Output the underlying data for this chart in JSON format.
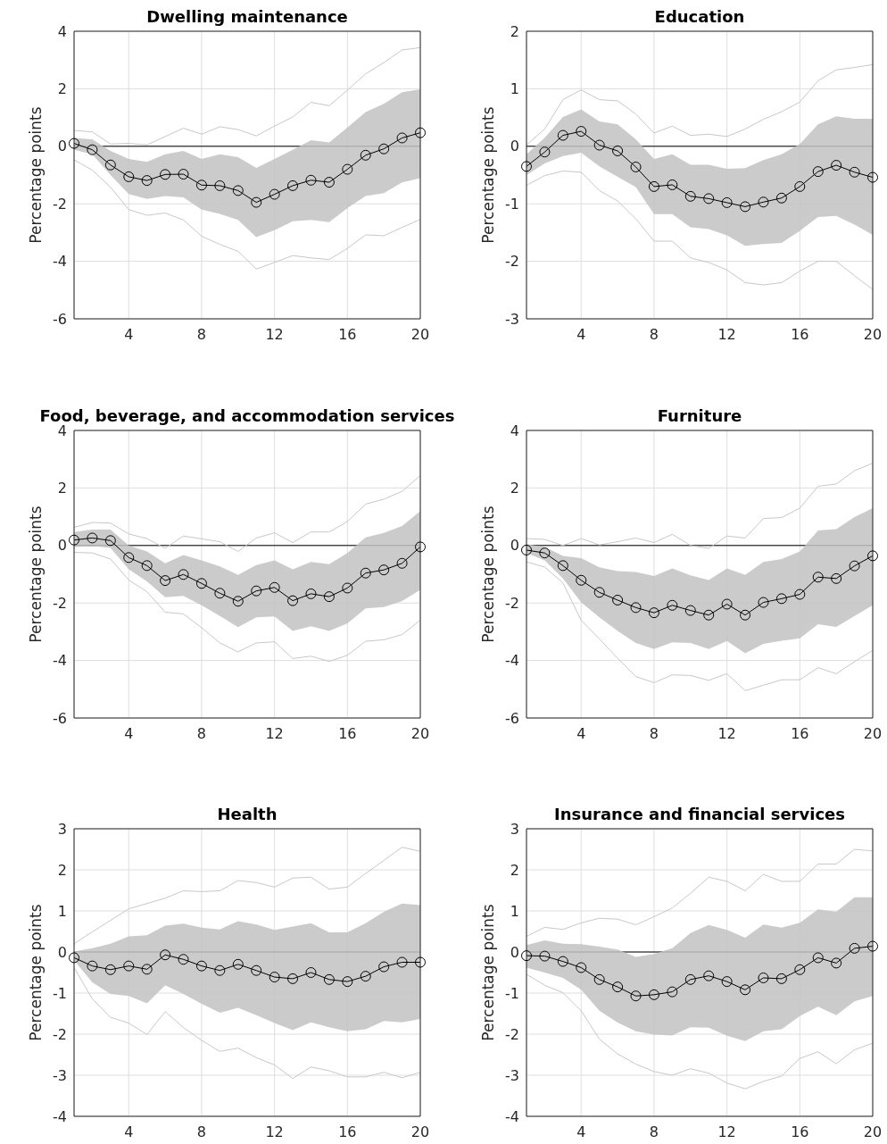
{
  "chart_data": [
    {
      "type": "line",
      "title": "Dwelling maintenance",
      "ylabel": "Percentage points",
      "x": [
        1,
        2,
        3,
        4,
        5,
        6,
        7,
        8,
        9,
        10,
        11,
        12,
        13,
        14,
        15,
        16,
        17,
        18,
        19,
        20
      ],
      "xlim": [
        1,
        20
      ],
      "xticks": [
        4,
        8,
        12,
        16,
        20
      ],
      "ylim": [
        -6,
        4
      ],
      "yticks": [
        -6,
        -4,
        -2,
        0,
        2,
        4
      ],
      "grid": true,
      "marker": "circle",
      "ref_lines": [
        {
          "axis": "y",
          "value": 0,
          "color": "#000000"
        }
      ],
      "series": [
        {
          "color": "#c8c8c8",
          "marker": "none",
          "values": [
            0.55,
            0.5,
            0.08,
            0.1,
            0.05,
            0.34,
            0.63,
            0.42,
            0.68,
            0.58,
            0.36,
            0.7,
            1.02,
            1.53,
            1.41,
            1.95,
            2.52,
            2.91,
            3.35,
            3.43
          ]
        },
        {
          "color": "#c8c8c8",
          "marker": "none",
          "values": [
            -0.47,
            -0.83,
            -1.42,
            -2.2,
            -2.4,
            -2.32,
            -2.56,
            -3.13,
            -3.41,
            -3.65,
            -4.27,
            -4.04,
            -3.8,
            -3.88,
            -3.94,
            -3.55,
            -3.08,
            -3.11,
            -2.82,
            -2.54
          ]
        },
        {
          "color": "#000000",
          "values": [
            0.1,
            -0.12,
            -0.65,
            -1.06,
            -1.19,
            -0.98,
            -0.97,
            -1.35,
            -1.37,
            -1.54,
            -1.95,
            -1.67,
            -1.37,
            -1.18,
            -1.25,
            -0.8,
            -0.31,
            -0.09,
            0.29,
            0.47
          ],
          "lower": [
            -0.12,
            -0.28,
            -1.0,
            -1.66,
            -1.83,
            -1.73,
            -1.78,
            -2.2,
            -2.35,
            -2.56,
            -3.16,
            -2.92,
            -2.61,
            -2.56,
            -2.64,
            -2.15,
            -1.73,
            -1.63,
            -1.26,
            -1.11
          ],
          "upper": [
            0.29,
            0.24,
            -0.16,
            -0.44,
            -0.54,
            -0.28,
            -0.16,
            -0.44,
            -0.28,
            -0.38,
            -0.75,
            -0.44,
            -0.12,
            0.21,
            0.13,
            0.65,
            1.19,
            1.48,
            1.88,
            1.98
          ]
        }
      ]
    },
    {
      "type": "line",
      "title": "Education",
      "ylabel": "Percentage points",
      "x": [
        1,
        2,
        3,
        4,
        5,
        6,
        7,
        8,
        9,
        10,
        11,
        12,
        13,
        14,
        15,
        16,
        17,
        18,
        19,
        20
      ],
      "xlim": [
        1,
        20
      ],
      "xticks": [
        4,
        8,
        12,
        16,
        20
      ],
      "ylim": [
        -3,
        2
      ],
      "yticks": [
        -3,
        -2,
        -1,
        0,
        1,
        2
      ],
      "grid": true,
      "marker": "circle",
      "ref_lines": [
        {
          "axis": "y",
          "value": 0,
          "color": "#000000"
        }
      ],
      "series": [
        {
          "color": "#c8c8c8",
          "marker": "none",
          "values": [
            0.02,
            0.3,
            0.81,
            0.98,
            0.81,
            0.79,
            0.56,
            0.23,
            0.35,
            0.19,
            0.21,
            0.17,
            0.3,
            0.47,
            0.6,
            0.77,
            1.14,
            1.33,
            1.37,
            1.42
          ]
        },
        {
          "color": "#c8c8c8",
          "marker": "none",
          "values": [
            -0.68,
            -0.51,
            -0.43,
            -0.45,
            -0.77,
            -0.95,
            -1.26,
            -1.65,
            -1.65,
            -1.94,
            -2.02,
            -2.15,
            -2.37,
            -2.41,
            -2.37,
            -2.17,
            -2.0,
            -2.0,
            -2.25,
            -2.49
          ]
        },
        {
          "color": "#000000",
          "values": [
            -0.35,
            -0.1,
            0.19,
            0.26,
            0.02,
            -0.08,
            -0.36,
            -0.7,
            -0.67,
            -0.87,
            -0.91,
            -0.98,
            -1.05,
            -0.97,
            -0.9,
            -0.7,
            -0.44,
            -0.33,
            -0.45,
            -0.54
          ],
          "lower": [
            -0.5,
            -0.3,
            -0.17,
            -0.11,
            -0.35,
            -0.53,
            -0.71,
            -1.18,
            -1.18,
            -1.41,
            -1.44,
            -1.55,
            -1.73,
            -1.7,
            -1.68,
            -1.47,
            -1.23,
            -1.21,
            -1.36,
            -1.54
          ],
          "upper": [
            -0.14,
            0.15,
            0.51,
            0.64,
            0.43,
            0.38,
            0.12,
            -0.22,
            -0.14,
            -0.32,
            -0.32,
            -0.39,
            -0.38,
            -0.24,
            -0.14,
            0.04,
            0.38,
            0.52,
            0.48,
            0.48
          ]
        }
      ]
    },
    {
      "type": "line",
      "title": "Food, beverage, and accommodation services",
      "ylabel": "Percentage points",
      "x": [
        1,
        2,
        3,
        4,
        5,
        6,
        7,
        8,
        9,
        10,
        11,
        12,
        13,
        14,
        15,
        16,
        17,
        18,
        19,
        20
      ],
      "xlim": [
        1,
        20
      ],
      "xticks": [
        4,
        8,
        12,
        16,
        20
      ],
      "ylim": [
        -6,
        4
      ],
      "yticks": [
        -6,
        -4,
        -2,
        0,
        2,
        4
      ],
      "grid": true,
      "marker": "circle",
      "ref_lines": [
        {
          "axis": "y",
          "value": 0,
          "color": "#000000"
        }
      ],
      "series": [
        {
          "color": "#c8c8c8",
          "marker": "none",
          "values": [
            0.63,
            0.8,
            0.78,
            0.4,
            0.24,
            -0.1,
            0.33,
            0.23,
            0.13,
            -0.21,
            0.26,
            0.44,
            0.1,
            0.47,
            0.47,
            0.83,
            1.44,
            1.61,
            1.88,
            2.43
          ]
        },
        {
          "color": "#c8c8c8",
          "marker": "none",
          "values": [
            -0.24,
            -0.26,
            -0.47,
            -1.2,
            -1.61,
            -2.32,
            -2.38,
            -2.86,
            -3.39,
            -3.7,
            -3.39,
            -3.35,
            -3.93,
            -3.85,
            -4.03,
            -3.82,
            -3.33,
            -3.28,
            -3.1,
            -2.6
          ]
        },
        {
          "color": "#000000",
          "values": [
            0.19,
            0.26,
            0.17,
            -0.42,
            -0.7,
            -1.22,
            -1.01,
            -1.32,
            -1.66,
            -1.94,
            -1.58,
            -1.46,
            -1.92,
            -1.68,
            -1.78,
            -1.48,
            -0.96,
            -0.85,
            -0.62,
            -0.05
          ],
          "lower": [
            -0.05,
            -0.02,
            -0.08,
            -0.83,
            -1.25,
            -1.8,
            -1.75,
            -2.08,
            -2.45,
            -2.84,
            -2.5,
            -2.47,
            -2.97,
            -2.81,
            -2.97,
            -2.71,
            -2.19,
            -2.14,
            -1.93,
            -1.54
          ],
          "upper": [
            0.47,
            0.55,
            0.55,
            0.0,
            -0.21,
            -0.62,
            -0.33,
            -0.52,
            -0.73,
            -1.02,
            -0.68,
            -0.52,
            -0.83,
            -0.57,
            -0.65,
            -0.26,
            0.28,
            0.44,
            0.68,
            1.2
          ]
        }
      ]
    },
    {
      "type": "line",
      "title": "Furniture",
      "ylabel": "Percentage points",
      "x": [
        1,
        2,
        3,
        4,
        5,
        6,
        7,
        8,
        9,
        10,
        11,
        12,
        13,
        14,
        15,
        16,
        17,
        18,
        19,
        20
      ],
      "xlim": [
        1,
        20
      ],
      "xticks": [
        4,
        8,
        12,
        16,
        20
      ],
      "ylim": [
        -6,
        4
      ],
      "yticks": [
        -6,
        -4,
        -2,
        0,
        2,
        4
      ],
      "grid": true,
      "marker": "circle",
      "ref_lines": [
        {
          "axis": "y",
          "value": 0,
          "color": "#000000"
        }
      ],
      "series": [
        {
          "color": "#c8c8c8",
          "marker": "none",
          "values": [
            0.24,
            0.21,
            0.0,
            0.24,
            0.02,
            0.13,
            0.26,
            0.1,
            0.39,
            0.0,
            -0.1,
            0.33,
            0.26,
            0.94,
            0.97,
            1.3,
            2.06,
            2.14,
            2.6,
            2.86
          ]
        },
        {
          "color": "#c8c8c8",
          "marker": "none",
          "values": [
            -0.57,
            -0.75,
            -1.3,
            -2.6,
            -3.25,
            -3.92,
            -4.56,
            -4.77,
            -4.5,
            -4.52,
            -4.69,
            -4.46,
            -5.05,
            -4.86,
            -4.67,
            -4.67,
            -4.25,
            -4.46,
            -4.04,
            -3.65
          ]
        },
        {
          "color": "#000000",
          "values": [
            -0.16,
            -0.26,
            -0.7,
            -1.21,
            -1.63,
            -1.9,
            -2.16,
            -2.34,
            -2.08,
            -2.26,
            -2.42,
            -2.04,
            -2.42,
            -1.98,
            -1.85,
            -1.7,
            -1.1,
            -1.15,
            -0.71,
            -0.36
          ],
          "lower": [
            -0.26,
            -0.52,
            -1.15,
            -1.98,
            -2.5,
            -2.97,
            -3.39,
            -3.6,
            -3.37,
            -3.39,
            -3.6,
            -3.32,
            -3.75,
            -3.42,
            -3.31,
            -3.23,
            -2.74,
            -2.83,
            -2.45,
            -2.08
          ],
          "upper": [
            0.05,
            -0.05,
            -0.36,
            -0.44,
            -0.76,
            -0.89,
            -0.92,
            -1.06,
            -0.8,
            -1.04,
            -1.2,
            -0.8,
            -1.02,
            -0.57,
            -0.47,
            -0.21,
            0.52,
            0.57,
            0.99,
            1.3
          ]
        }
      ]
    },
    {
      "type": "line",
      "title": "Health",
      "ylabel": "Percentage points",
      "x": [
        1,
        2,
        3,
        4,
        5,
        6,
        7,
        8,
        9,
        10,
        11,
        12,
        13,
        14,
        15,
        16,
        17,
        18,
        19,
        20
      ],
      "xlim": [
        1,
        20
      ],
      "xticks": [
        4,
        8,
        12,
        16,
        20
      ],
      "ylim": [
        -4,
        3
      ],
      "yticks": [
        -4,
        -3,
        -2,
        -1,
        0,
        1,
        2,
        3
      ],
      "grid": true,
      "marker": "circle",
      "ref_lines": [
        {
          "axis": "y",
          "value": 0,
          "color": "#000000"
        }
      ],
      "series": [
        {
          "color": "#c8c8c8",
          "marker": "none",
          "values": [
            0.2,
            0.49,
            0.77,
            1.05,
            1.18,
            1.31,
            1.49,
            1.47,
            1.49,
            1.74,
            1.69,
            1.58,
            1.8,
            1.82,
            1.53,
            1.58,
            1.91,
            2.23,
            2.55,
            2.45
          ]
        },
        {
          "color": "#c8c8c8",
          "marker": "none",
          "values": [
            -0.38,
            -1.14,
            -1.59,
            -1.73,
            -2.01,
            -1.45,
            -1.84,
            -2.15,
            -2.42,
            -2.34,
            -2.57,
            -2.75,
            -3.08,
            -2.8,
            -2.89,
            -3.04,
            -3.04,
            -2.93,
            -3.06,
            -2.93
          ]
        },
        {
          "color": "#000000",
          "values": [
            -0.14,
            -0.34,
            -0.43,
            -0.34,
            -0.42,
            -0.07,
            -0.18,
            -0.34,
            -0.45,
            -0.3,
            -0.45,
            -0.61,
            -0.65,
            -0.5,
            -0.67,
            -0.72,
            -0.59,
            -0.36,
            -0.25,
            -0.25
          ],
          "lower": [
            -0.2,
            -0.74,
            -1.02,
            -1.07,
            -1.25,
            -0.81,
            -1.02,
            -1.26,
            -1.48,
            -1.36,
            -1.54,
            -1.73,
            -1.9,
            -1.71,
            -1.83,
            -1.93,
            -1.88,
            -1.68,
            -1.71,
            -1.63
          ],
          "upper": [
            0.01,
            0.09,
            0.2,
            0.38,
            0.41,
            0.64,
            0.69,
            0.59,
            0.55,
            0.75,
            0.67,
            0.54,
            0.62,
            0.7,
            0.48,
            0.48,
            0.7,
            0.98,
            1.18,
            1.14
          ]
        }
      ]
    },
    {
      "type": "line",
      "title": "Insurance and financial services",
      "ylabel": "Percentage points",
      "x": [
        1,
        2,
        3,
        4,
        5,
        6,
        7,
        8,
        9,
        10,
        11,
        12,
        13,
        14,
        15,
        16,
        17,
        18,
        19,
        20
      ],
      "xlim": [
        1,
        20
      ],
      "xticks": [
        4,
        8,
        12,
        16,
        20
      ],
      "ylim": [
        -4,
        3
      ],
      "yticks": [
        -4,
        -3,
        -2,
        -1,
        0,
        1,
        2,
        3
      ],
      "grid": true,
      "marker": "circle",
      "ref_lines": [
        {
          "axis": "y",
          "value": 0,
          "color": "#000000"
        }
      ],
      "series": [
        {
          "color": "#c8c8c8",
          "marker": "none",
          "values": [
            0.38,
            0.6,
            0.55,
            0.71,
            0.82,
            0.8,
            0.66,
            0.86,
            1.07,
            1.43,
            1.82,
            1.72,
            1.49,
            1.89,
            1.72,
            1.72,
            2.14,
            2.14,
            2.5,
            2.46
          ]
        },
        {
          "color": "#c8c8c8",
          "marker": "none",
          "values": [
            -0.54,
            -0.81,
            -0.99,
            -1.43,
            -2.12,
            -2.48,
            -2.73,
            -2.91,
            -3.0,
            -2.84,
            -2.95,
            -3.19,
            -3.33,
            -3.15,
            -3.02,
            -2.59,
            -2.43,
            -2.72,
            -2.38,
            -2.22
          ]
        },
        {
          "color": "#000000",
          "values": [
            -0.09,
            -0.1,
            -0.23,
            -0.38,
            -0.67,
            -0.85,
            -1.07,
            -1.04,
            -0.97,
            -0.67,
            -0.58,
            -0.72,
            -0.92,
            -0.63,
            -0.65,
            -0.43,
            -0.14,
            -0.27,
            0.09,
            0.14
          ],
          "lower": [
            -0.38,
            -0.5,
            -0.63,
            -0.92,
            -1.43,
            -1.72,
            -1.93,
            -2.01,
            -2.03,
            -1.83,
            -1.84,
            -2.04,
            -2.17,
            -1.93,
            -1.88,
            -1.56,
            -1.33,
            -1.54,
            -1.2,
            -1.07
          ],
          "upper": [
            0.17,
            0.28,
            0.2,
            0.19,
            0.13,
            0.06,
            -0.12,
            -0.05,
            0.09,
            0.46,
            0.66,
            0.54,
            0.35,
            0.67,
            0.59,
            0.71,
            1.04,
            0.98,
            1.33,
            1.33
          ]
        }
      ]
    }
  ]
}
